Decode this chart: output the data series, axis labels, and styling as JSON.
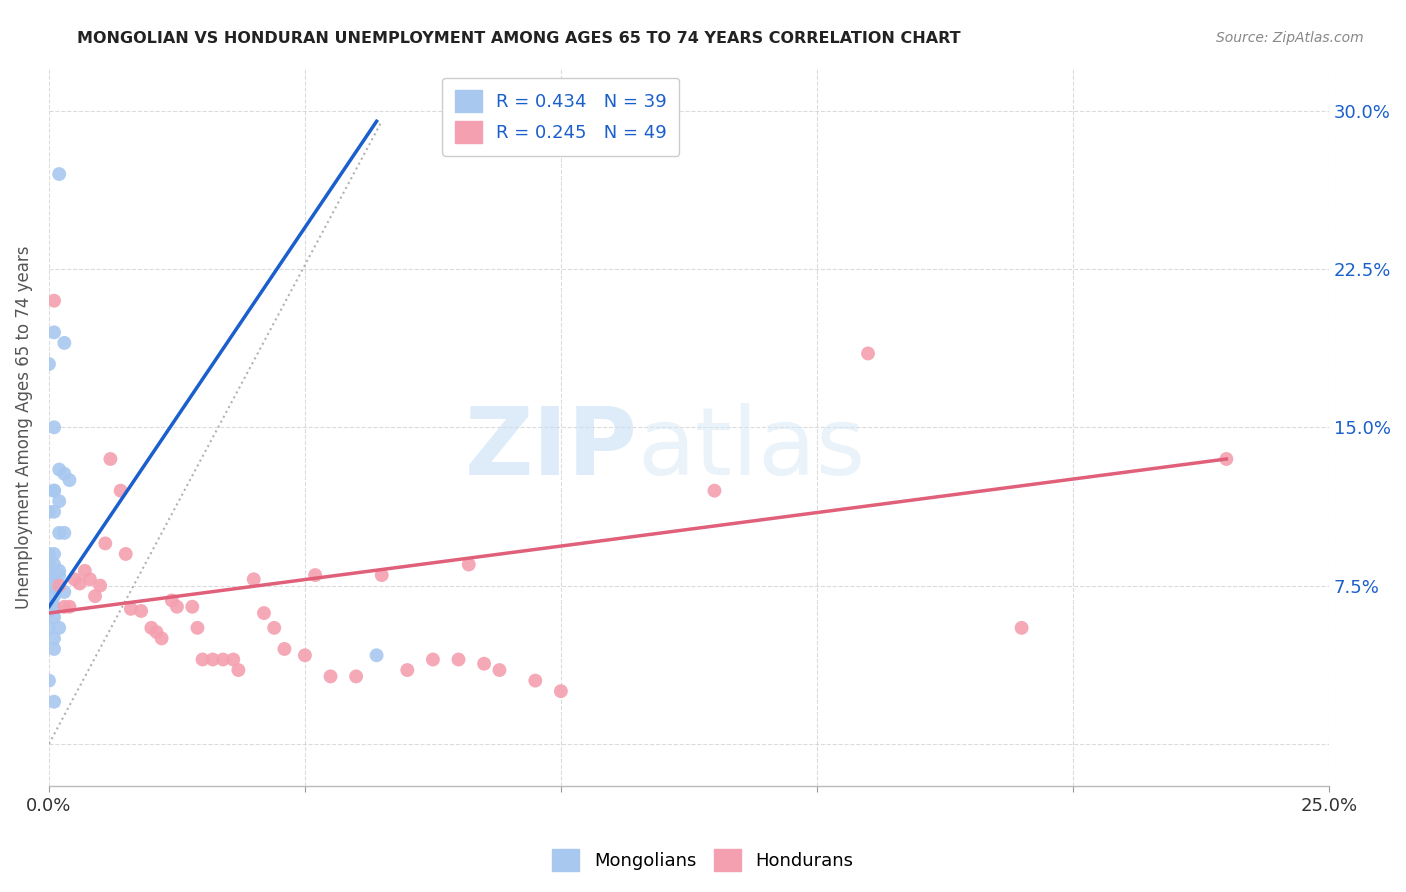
{
  "title": "MONGOLIAN VS HONDURAN UNEMPLOYMENT AMONG AGES 65 TO 74 YEARS CORRELATION CHART",
  "source": "Source: ZipAtlas.com",
  "ylabel": "Unemployment Among Ages 65 to 74 years",
  "xlim": [
    0.0,
    0.25
  ],
  "ylim": [
    -0.02,
    0.32
  ],
  "xticks": [
    0.0,
    0.05,
    0.1,
    0.15,
    0.2,
    0.25
  ],
  "yticks": [
    0.0,
    0.075,
    0.15,
    0.225,
    0.3
  ],
  "xtick_labels": [
    "0.0%",
    "",
    "",
    "",
    "",
    "25.0%"
  ],
  "ytick_right_labels": [
    "",
    "7.5%",
    "15.0%",
    "22.5%",
    "30.0%"
  ],
  "background_color": "#ffffff",
  "grid_color": "#cccccc",
  "mongolian_color": "#a8c8f0",
  "honduran_color": "#f4a0b0",
  "mongolian_line_color": "#1a5fcc",
  "honduran_line_color": "#e0607a",
  "legend_text_color": "#1a5fcc",
  "R_mongolian": 0.434,
  "N_mongolian": 39,
  "R_honduran": 0.245,
  "N_honduran": 49,
  "mongolian_scatter_x": [
    0.002,
    0.001,
    0.003,
    0.0,
    0.001,
    0.002,
    0.003,
    0.004,
    0.001,
    0.001,
    0.002,
    0.0,
    0.001,
    0.002,
    0.003,
    0.0,
    0.001,
    0.001,
    0.0,
    0.002,
    0.001,
    0.001,
    0.002,
    0.0,
    0.001,
    0.001,
    0.003,
    0.001,
    0.001,
    0.001,
    0.0,
    0.001,
    0.0,
    0.002,
    0.001,
    0.001,
    0.064,
    0.0,
    0.001
  ],
  "mongolian_scatter_y": [
    0.27,
    0.195,
    0.19,
    0.18,
    0.15,
    0.13,
    0.128,
    0.125,
    0.12,
    0.12,
    0.115,
    0.11,
    0.11,
    0.1,
    0.1,
    0.09,
    0.09,
    0.085,
    0.085,
    0.082,
    0.08,
    0.08,
    0.08,
    0.075,
    0.075,
    0.074,
    0.072,
    0.07,
    0.065,
    0.065,
    0.063,
    0.06,
    0.055,
    0.055,
    0.05,
    0.045,
    0.042,
    0.03,
    0.02
  ],
  "honduran_scatter_x": [
    0.001,
    0.002,
    0.004,
    0.005,
    0.006,
    0.007,
    0.008,
    0.009,
    0.01,
    0.011,
    0.012,
    0.014,
    0.015,
    0.016,
    0.018,
    0.02,
    0.021,
    0.022,
    0.024,
    0.025,
    0.028,
    0.029,
    0.03,
    0.032,
    0.034,
    0.036,
    0.037,
    0.04,
    0.042,
    0.044,
    0.046,
    0.05,
    0.052,
    0.055,
    0.06,
    0.065,
    0.07,
    0.075,
    0.08,
    0.082,
    0.085,
    0.088,
    0.095,
    0.1,
    0.13,
    0.16,
    0.19,
    0.23,
    0.003
  ],
  "honduran_scatter_y": [
    0.21,
    0.075,
    0.065,
    0.078,
    0.076,
    0.082,
    0.078,
    0.07,
    0.075,
    0.095,
    0.135,
    0.12,
    0.09,
    0.064,
    0.063,
    0.055,
    0.053,
    0.05,
    0.068,
    0.065,
    0.065,
    0.055,
    0.04,
    0.04,
    0.04,
    0.04,
    0.035,
    0.078,
    0.062,
    0.055,
    0.045,
    0.042,
    0.08,
    0.032,
    0.032,
    0.08,
    0.035,
    0.04,
    0.04,
    0.085,
    0.038,
    0.035,
    0.03,
    0.025,
    0.12,
    0.185,
    0.055,
    0.135,
    0.065
  ],
  "mongolian_line_x": [
    0.0,
    0.064
  ],
  "mongolian_line_y": [
    0.065,
    0.295
  ],
  "honduran_line_x": [
    0.0,
    0.23
  ],
  "honduran_line_y": [
    0.062,
    0.135
  ],
  "diag_line_x": [
    0.0,
    0.065
  ],
  "diag_line_y": [
    0.0,
    0.295
  ]
}
